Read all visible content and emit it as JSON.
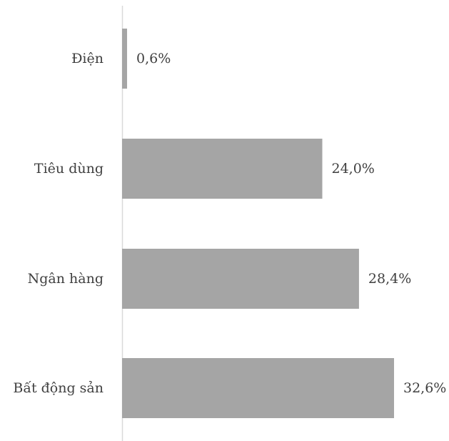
{
  "chart_data": {
    "type": "bar",
    "orientation": "horizontal",
    "categories": [
      "Điện",
      "Tiêu dùng",
      "Ngân hàng",
      "Bất động sản"
    ],
    "values": [
      0.6,
      24.0,
      28.4,
      32.6
    ],
    "value_labels": [
      "0,6%",
      "24,0%",
      "28,4%",
      "32,6%"
    ],
    "unit": "%",
    "title": "",
    "xlabel": "",
    "ylabel": "",
    "xlim": [
      0,
      35
    ],
    "grid": false,
    "legend": "none",
    "bar_color": "#a5a5a5",
    "axis_color": "#d9d9d9",
    "text_color": "#404040"
  }
}
